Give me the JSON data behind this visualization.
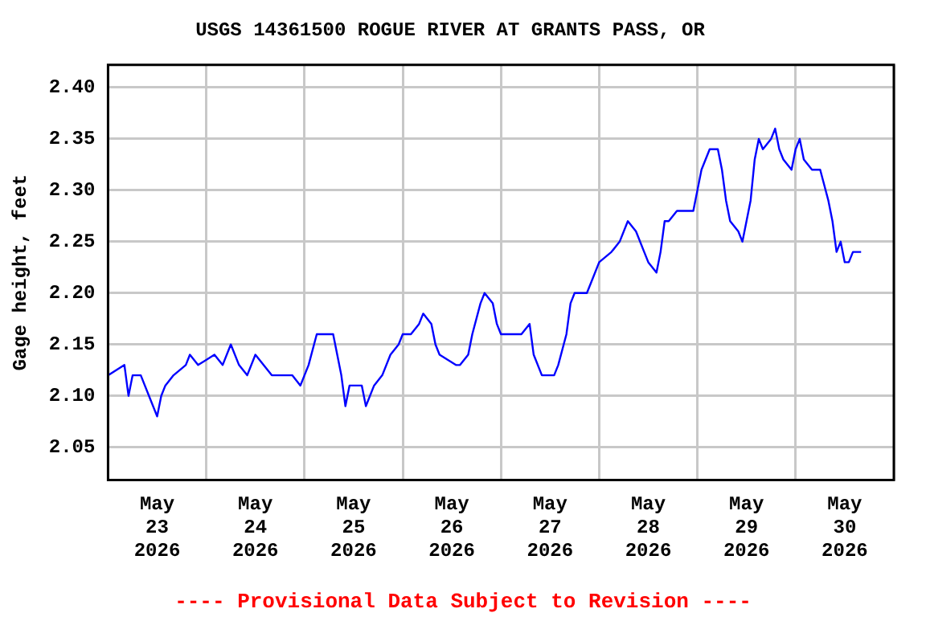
{
  "chart_data": {
    "type": "line",
    "title": "USGS 14361500 ROGUE RIVER AT GRANTS PASS, OR",
    "ylabel": "Gage height, feet",
    "annotations": [
      "---- Provisional Data Subject to Revision ----"
    ],
    "grid": true,
    "legend": false,
    "marker": "none",
    "line_style": "solid",
    "xlim": [
      "2026-05-23T00:00",
      "2026-05-31T00:00"
    ],
    "xticks": [
      {
        "value": "2026-05-23T00:00",
        "label": null
      },
      {
        "value": "2026-05-23T12:00",
        "label": "May 23 2026"
      },
      {
        "value": "2026-05-24T00:00",
        "label": null
      },
      {
        "value": "2026-05-24T12:00",
        "label": "May 24 2026"
      },
      {
        "value": "2026-05-25T00:00",
        "label": null
      },
      {
        "value": "2026-05-25T12:00",
        "label": "May 25 2026"
      },
      {
        "value": "2026-05-26T00:00",
        "label": null
      },
      {
        "value": "2026-05-26T12:00",
        "label": "May 26 2026"
      },
      {
        "value": "2026-05-27T00:00",
        "label": null
      },
      {
        "value": "2026-05-27T12:00",
        "label": "May 27 2026"
      },
      {
        "value": "2026-05-28T00:00",
        "label": null
      },
      {
        "value": "2026-05-28T12:00",
        "label": "May 28 2026"
      },
      {
        "value": "2026-05-29T00:00",
        "label": null
      },
      {
        "value": "2026-05-29T12:00",
        "label": "May 29 2026"
      },
      {
        "value": "2026-05-30T00:00",
        "label": null
      },
      {
        "value": "2026-05-30T12:00",
        "label": "May 30 2026"
      },
      {
        "value": "2026-05-31T00:00",
        "label": null
      }
    ],
    "ylim": [
      2.018,
      2.422
    ],
    "yticks": [
      2.05,
      {
        "value": 2.1,
        "label": "2.10"
      },
      2.15,
      {
        "value": 2.2,
        "label": "2.20"
      },
      2.25,
      {
        "value": 2.3,
        "label": "2.30"
      },
      2.35,
      {
        "value": 2.4,
        "label": "2.40"
      }
    ],
    "x": [
      "2026-05-23T00:00",
      "2026-05-23T04:00",
      "2026-05-23T05:00",
      "2026-05-23T06:00",
      "2026-05-23T08:00",
      "2026-05-23T10:00",
      "2026-05-23T12:00",
      "2026-05-23T13:00",
      "2026-05-23T14:00",
      "2026-05-23T16:00",
      "2026-05-23T19:00",
      "2026-05-23T20:00",
      "2026-05-23T22:00",
      "2026-05-24T02:00",
      "2026-05-24T04:00",
      "2026-05-24T06:00",
      "2026-05-24T08:00",
      "2026-05-24T10:00",
      "2026-05-24T12:00",
      "2026-05-24T16:00",
      "2026-05-24T21:00",
      "2026-05-24T23:00",
      "2026-05-25T01:00",
      "2026-05-25T03:00",
      "2026-05-25T07:00",
      "2026-05-25T08:00",
      "2026-05-25T09:00",
      "2026-05-25T10:00",
      "2026-05-25T11:00",
      "2026-05-25T14:00",
      "2026-05-25T15:00",
      "2026-05-25T17:00",
      "2026-05-25T19:00",
      "2026-05-25T21:00",
      "2026-05-25T23:00",
      "2026-05-26T00:00",
      "2026-05-26T02:00",
      "2026-05-26T04:00",
      "2026-05-26T05:00",
      "2026-05-26T07:00",
      "2026-05-26T08:00",
      "2026-05-26T09:00",
      "2026-05-26T13:00",
      "2026-05-26T14:00",
      "2026-05-26T16:00",
      "2026-05-26T17:00",
      "2026-05-26T19:00",
      "2026-05-26T20:00",
      "2026-05-26T22:00",
      "2026-05-26T23:00",
      "2026-05-27T00:00",
      "2026-05-27T03:00",
      "2026-05-27T05:00",
      "2026-05-27T07:00",
      "2026-05-27T08:00",
      "2026-05-27T10:00",
      "2026-05-27T13:00",
      "2026-05-27T14:00",
      "2026-05-27T16:00",
      "2026-05-27T17:00",
      "2026-05-27T18:00",
      "2026-05-27T21:00",
      "2026-05-27T22:00",
      "2026-05-28T00:00",
      "2026-05-28T03:00",
      "2026-05-28T05:00",
      "2026-05-28T07:00",
      "2026-05-28T09:00",
      "2026-05-28T11:00",
      "2026-05-28T12:00",
      "2026-05-28T14:00",
      "2026-05-28T15:00",
      "2026-05-28T16:00",
      "2026-05-28T17:00",
      "2026-05-28T19:00",
      "2026-05-28T23:00",
      "2026-05-29T00:00",
      "2026-05-29T01:00",
      "2026-05-29T03:00",
      "2026-05-29T05:00",
      "2026-05-29T06:00",
      "2026-05-29T07:00",
      "2026-05-29T08:00",
      "2026-05-29T10:00",
      "2026-05-29T11:00",
      "2026-05-29T12:00",
      "2026-05-29T13:00",
      "2026-05-29T14:00",
      "2026-05-29T15:00",
      "2026-05-29T16:00",
      "2026-05-29T18:00",
      "2026-05-29T19:00",
      "2026-05-29T20:00",
      "2026-05-29T21:00",
      "2026-05-29T23:00",
      "2026-05-30T00:00",
      "2026-05-30T01:00",
      "2026-05-30T02:00",
      "2026-05-30T04:00",
      "2026-05-30T06:00",
      "2026-05-30T08:00",
      "2026-05-30T09:00",
      "2026-05-30T10:00",
      "2026-05-30T11:00",
      "2026-05-30T12:00",
      "2026-05-30T13:00",
      "2026-05-30T14:00",
      "2026-05-30T16:00"
    ],
    "series": [
      {
        "color": "#0000ff",
        "values": [
          2.12,
          2.13,
          2.1,
          2.12,
          2.12,
          2.1,
          2.08,
          2.1,
          2.11,
          2.12,
          2.13,
          2.14,
          2.13,
          2.14,
          2.13,
          2.15,
          2.13,
          2.12,
          2.14,
          2.12,
          2.12,
          2.11,
          2.13,
          2.16,
          2.16,
          2.14,
          2.12,
          2.09,
          2.11,
          2.11,
          2.09,
          2.11,
          2.12,
          2.14,
          2.15,
          2.16,
          2.16,
          2.17,
          2.18,
          2.17,
          2.15,
          2.14,
          2.13,
          2.13,
          2.14,
          2.16,
          2.19,
          2.2,
          2.19,
          2.17,
          2.16,
          2.16,
          2.16,
          2.17,
          2.14,
          2.12,
          2.12,
          2.13,
          2.16,
          2.19,
          2.2,
          2.2,
          2.21,
          2.23,
          2.24,
          2.25,
          2.27,
          2.26,
          2.24,
          2.23,
          2.22,
          2.24,
          2.27,
          2.27,
          2.28,
          2.28,
          2.3,
          2.32,
          2.34,
          2.34,
          2.32,
          2.29,
          2.27,
          2.26,
          2.25,
          2.27,
          2.29,
          2.33,
          2.35,
          2.34,
          2.35,
          2.36,
          2.34,
          2.33,
          2.32,
          2.34,
          2.35,
          2.33,
          2.32,
          2.32,
          2.29,
          2.27,
          2.24,
          2.25,
          2.23,
          2.23,
          2.24,
          2.24
        ]
      }
    ]
  }
}
